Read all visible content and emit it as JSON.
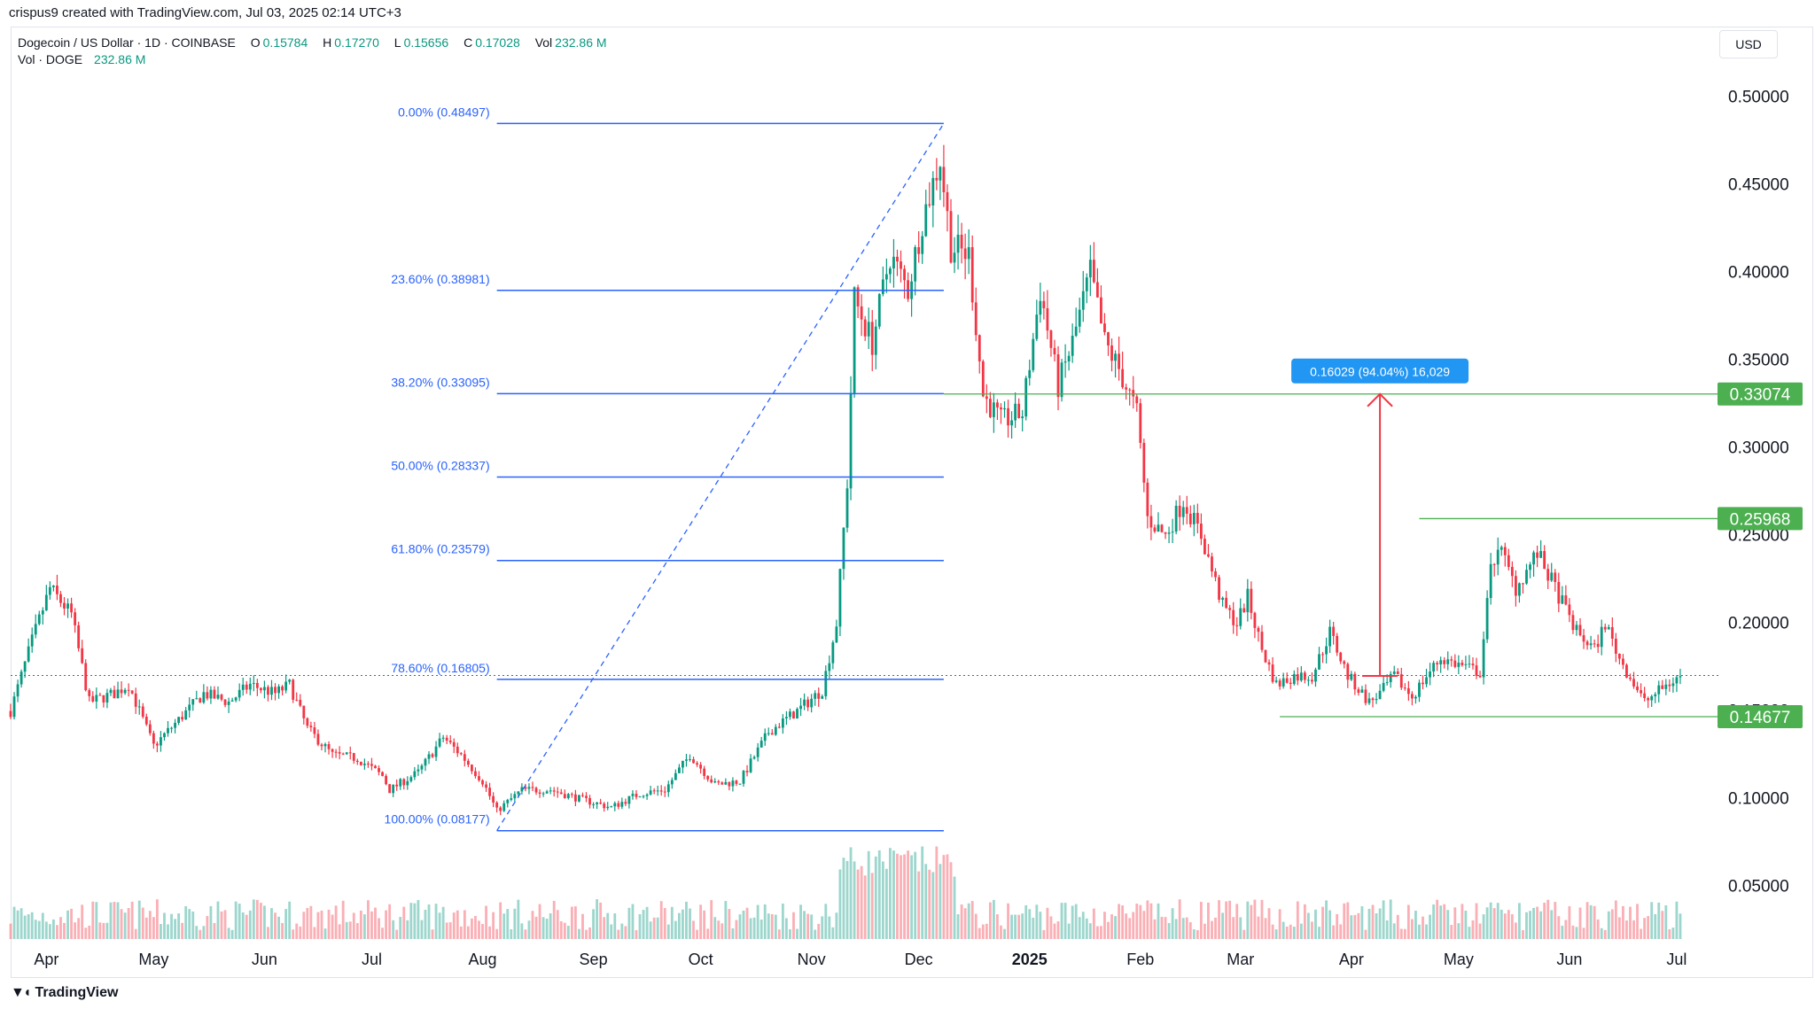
{
  "attribution": "crispus9 created with TradingView.com, Jul 03, 2025 02:14 UTC+3",
  "legend": {
    "symbol": "Dogecoin / US Dollar · 1D · COINBASE",
    "open_label": "O",
    "open": "0.15784",
    "high_label": "H",
    "high": "0.17270",
    "low_label": "L",
    "low": "0.15656",
    "close_label": "C",
    "close": "0.17028",
    "vol_label": "Vol",
    "vol": "232.86 M",
    "vol_row_label": "Vol · DOGE",
    "vol_row_value": "232.86 M"
  },
  "currency_button": "USD",
  "logo_text": "TradingView",
  "colors": {
    "up": "#089981",
    "down": "#f23645",
    "fib": "#2962ff",
    "level": "#4caf50",
    "measure": "#f23645",
    "measure_label_bg": "#2196f3",
    "grid": "#e0e3eb"
  },
  "chart_data": {
    "type": "candlestick",
    "title": "Dogecoin / US Dollar · 1D · COINBASE",
    "y_scale": {
      "min": 0.02,
      "max": 0.52,
      "ticks": [
        "0.50000",
        "0.45000",
        "0.40000",
        "0.35000",
        "0.30000",
        "0.25000",
        "0.20000",
        "0.15000",
        "0.10000",
        "0.05000"
      ],
      "tick_values": [
        0.5,
        0.45,
        0.4,
        0.35,
        0.3,
        0.25,
        0.2,
        0.15,
        0.1,
        0.05
      ]
    },
    "x_ticks": [
      {
        "label": "Apr",
        "date": "2024-04-01",
        "bold": false
      },
      {
        "label": "May",
        "date": "2024-05-01",
        "bold": false
      },
      {
        "label": "Jun",
        "date": "2024-06-01",
        "bold": false
      },
      {
        "label": "Jul",
        "date": "2024-07-01",
        "bold": false
      },
      {
        "label": "Aug",
        "date": "2024-08-01",
        "bold": false
      },
      {
        "label": "Sep",
        "date": "2024-09-01",
        "bold": false
      },
      {
        "label": "Oct",
        "date": "2024-10-01",
        "bold": false
      },
      {
        "label": "Nov",
        "date": "2024-11-01",
        "bold": false
      },
      {
        "label": "Dec",
        "date": "2024-12-01",
        "bold": false
      },
      {
        "label": "2025",
        "date": "2025-01-01",
        "bold": true
      },
      {
        "label": "Feb",
        "date": "2025-02-01",
        "bold": false
      },
      {
        "label": "Mar",
        "date": "2025-03-01",
        "bold": false
      },
      {
        "label": "Apr",
        "date": "2025-04-01",
        "bold": false
      },
      {
        "label": "May",
        "date": "2025-05-01",
        "bold": false
      },
      {
        "label": "Jun",
        "date": "2025-06-01",
        "bold": false
      },
      {
        "label": "Jul",
        "date": "2025-07-01",
        "bold": false
      }
    ],
    "x_range": [
      "2024-03-22",
      "2025-07-03"
    ],
    "price_path": [
      [
        "2024-03-22",
        0.15
      ],
      [
        "2024-03-28",
        0.19
      ],
      [
        "2024-04-02",
        0.22
      ],
      [
        "2024-04-08",
        0.205
      ],
      [
        "2024-04-13",
        0.155
      ],
      [
        "2024-04-20",
        0.16
      ],
      [
        "2024-04-24",
        0.165
      ],
      [
        "2024-05-01",
        0.13
      ],
      [
        "2024-05-08",
        0.145
      ],
      [
        "2024-05-15",
        0.16
      ],
      [
        "2024-05-22",
        0.155
      ],
      [
        "2024-05-28",
        0.165
      ],
      [
        "2024-06-04",
        0.16
      ],
      [
        "2024-06-08",
        0.165
      ],
      [
        "2024-06-13",
        0.14
      ],
      [
        "2024-06-20",
        0.125
      ],
      [
        "2024-06-27",
        0.123
      ],
      [
        "2024-07-04",
        0.113
      ],
      [
        "2024-07-06",
        0.105
      ],
      [
        "2024-07-14",
        0.115
      ],
      [
        "2024-07-21",
        0.135
      ],
      [
        "2024-07-26",
        0.125
      ],
      [
        "2024-08-01",
        0.11
      ],
      [
        "2024-08-05",
        0.093
      ],
      [
        "2024-08-12",
        0.105
      ],
      [
        "2024-08-20",
        0.105
      ],
      [
        "2024-08-28",
        0.1
      ],
      [
        "2024-09-06",
        0.095
      ],
      [
        "2024-09-14",
        0.103
      ],
      [
        "2024-09-21",
        0.105
      ],
      [
        "2024-09-28",
        0.125
      ],
      [
        "2024-10-05",
        0.108
      ],
      [
        "2024-10-12",
        0.11
      ],
      [
        "2024-10-20",
        0.138
      ],
      [
        "2024-10-28",
        0.15
      ],
      [
        "2024-11-04",
        0.162
      ],
      [
        "2024-11-08",
        0.2
      ],
      [
        "2024-11-11",
        0.28
      ],
      [
        "2024-11-13",
        0.385
      ],
      [
        "2024-11-18",
        0.36
      ],
      [
        "2024-11-23",
        0.41
      ],
      [
        "2024-11-28",
        0.39
      ],
      [
        "2024-12-02",
        0.43
      ],
      [
        "2024-12-07",
        0.465
      ],
      [
        "2024-12-10",
        0.415
      ],
      [
        "2024-12-15",
        0.41
      ],
      [
        "2024-12-19",
        0.33
      ],
      [
        "2024-12-24",
        0.315
      ],
      [
        "2024-12-30",
        0.32
      ],
      [
        "2025-01-04",
        0.39
      ],
      [
        "2025-01-09",
        0.335
      ],
      [
        "2025-01-13",
        0.36
      ],
      [
        "2025-01-18",
        0.4
      ],
      [
        "2025-01-22",
        0.36
      ],
      [
        "2025-01-26",
        0.345
      ],
      [
        "2025-01-31",
        0.32
      ],
      [
        "2025-02-03",
        0.26
      ],
      [
        "2025-02-08",
        0.25
      ],
      [
        "2025-02-13",
        0.27
      ],
      [
        "2025-02-18",
        0.25
      ],
      [
        "2025-02-24",
        0.21
      ],
      [
        "2025-02-28",
        0.2
      ],
      [
        "2025-03-03",
        0.215
      ],
      [
        "2025-03-07",
        0.185
      ],
      [
        "2025-03-11",
        0.165
      ],
      [
        "2025-03-16",
        0.17
      ],
      [
        "2025-03-21",
        0.17
      ],
      [
        "2025-03-26",
        0.195
      ],
      [
        "2025-03-31",
        0.17
      ],
      [
        "2025-04-06",
        0.155
      ],
      [
        "2025-04-09",
        0.16
      ],
      [
        "2025-04-13",
        0.17
      ],
      [
        "2025-04-18",
        0.158
      ],
      [
        "2025-04-22",
        0.17
      ],
      [
        "2025-04-26",
        0.18
      ],
      [
        "2025-05-03",
        0.175
      ],
      [
        "2025-05-07",
        0.172
      ],
      [
        "2025-05-10",
        0.23
      ],
      [
        "2025-05-12",
        0.245
      ],
      [
        "2025-05-17",
        0.22
      ],
      [
        "2025-05-23",
        0.24
      ],
      [
        "2025-05-28",
        0.22
      ],
      [
        "2025-06-03",
        0.195
      ],
      [
        "2025-06-08",
        0.185
      ],
      [
        "2025-06-11",
        0.2
      ],
      [
        "2025-06-15",
        0.18
      ],
      [
        "2025-06-22",
        0.155
      ],
      [
        "2025-06-27",
        0.163
      ],
      [
        "2025-07-02",
        0.17
      ]
    ],
    "fib_retracement": {
      "start": "2024-08-05",
      "end": "2024-12-08",
      "levels": [
        {
          "label": "0.00% (0.48497)",
          "value": 0.48497
        },
        {
          "label": "23.60% (0.38981)",
          "value": 0.38981
        },
        {
          "label": "38.20% (0.33095)",
          "value": 0.33095
        },
        {
          "label": "50.00% (0.28337)",
          "value": 0.28337
        },
        {
          "label": "61.80% (0.23579)",
          "value": 0.23579
        },
        {
          "label": "78.60% (0.16805)",
          "value": 0.16805
        },
        {
          "label": "100.00% (0.08177)",
          "value": 0.08177
        }
      ]
    },
    "horizontal_levels": [
      {
        "label": "0.33074",
        "value": 0.33074,
        "start": "2024-12-08"
      },
      {
        "label": "0.25968",
        "value": 0.25968,
        "start": "2025-04-20"
      },
      {
        "label": "0.14677",
        "value": 0.14677,
        "start": "2025-03-12"
      }
    ],
    "current_price_line": 0.17028,
    "measure": {
      "date": "2025-04-09",
      "from": 0.17,
      "to": 0.33074,
      "label": "0.16029 (94.04%) 16,029"
    },
    "volume_note": "Vol · DOGE 232.86 M"
  }
}
